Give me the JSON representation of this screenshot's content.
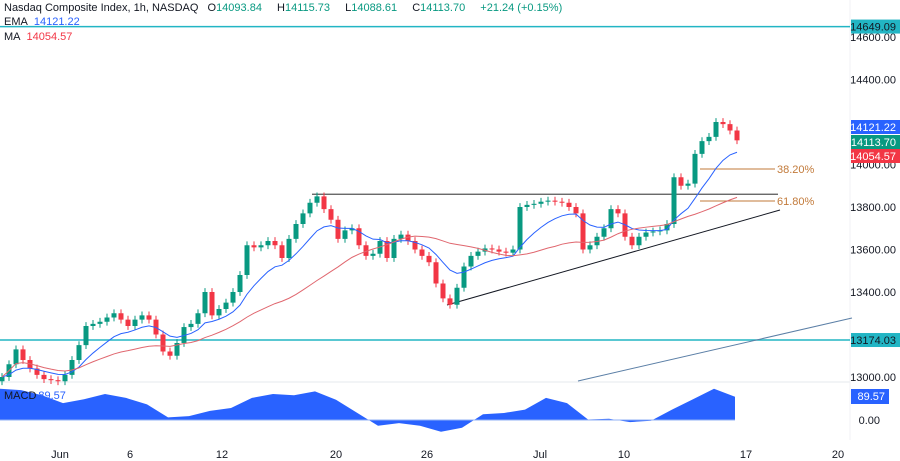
{
  "header": {
    "symbol": "Nasdaq Composite Index, 1h, NASDAQ",
    "open_label": "O",
    "open": "14093.84",
    "high_label": "H",
    "high": "14115.73",
    "low_label": "L",
    "low": "14088.61",
    "close_label": "C",
    "close": "14113.70",
    "change": "+21.24 (+0.15%)",
    "ema_label": "EMA",
    "ema_value": "14121.22",
    "ma_label": "MA",
    "ma_value": "14054.57",
    "macd_label": "MACD",
    "macd_value": "89.57"
  },
  "colors": {
    "up": "#089981",
    "down": "#f23645",
    "ema": "#2962ff",
    "ma": "#e0676f",
    "level": "#22b5c4",
    "fib": "#c27a3a",
    "trend": "#131722",
    "macd": "#2962ff"
  },
  "chart_data": {
    "type": "candlestick",
    "title": "Nasdaq Composite Index, 1h, NASDAQ",
    "ylim": [
      12950,
      14700
    ],
    "y_ticks": [
      "14600.00",
      "14400.00",
      "14000.00",
      "13800.00",
      "13600.00",
      "13400.00",
      "13000.00"
    ],
    "x_ticks": [
      "Jun",
      "6",
      "12",
      "20",
      "26",
      "Jul",
      "10",
      "17",
      "20"
    ],
    "close": [
      13000,
      13060,
      13130,
      13080,
      13040,
      13010,
      12990,
      12985,
      12980,
      13010,
      13080,
      13150,
      13240,
      13250,
      13260,
      13280,
      13300,
      13270,
      13240,
      13270,
      13290,
      13270,
      13200,
      13120,
      13100,
      13160,
      13235,
      13250,
      13300,
      13400,
      13290,
      13320,
      13350,
      13400,
      13480,
      13620,
      13610,
      13620,
      13640,
      13620,
      13560,
      13650,
      13720,
      13770,
      13820,
      13850,
      13790,
      13740,
      13650,
      13690,
      13700,
      13620,
      13570,
      13580,
      13640,
      13560,
      13650,
      13670,
      13640,
      13600,
      13570,
      13540,
      13440,
      13370,
      13340,
      13420,
      13520,
      13570,
      13590,
      13605,
      13600,
      13590,
      13585,
      13600,
      13800,
      13810,
      13815,
      13825,
      13830,
      13825,
      13820,
      13800,
      13770,
      13600,
      13620,
      13660,
      13700,
      13790,
      13770,
      13660,
      13620,
      13660,
      13680,
      13685,
      13690,
      13720,
      13940,
      13900,
      13910,
      14050,
      14110,
      14130,
      14200,
      14190,
      14160,
      14113.7
    ],
    "price_labels": {
      "ema": "14121.22",
      "last": "14113.70",
      "ma": "14054.57"
    },
    "levels": [
      {
        "value": 14649.09,
        "label": "14649.09"
      },
      {
        "value": 13174.03,
        "label": "13174.03"
      }
    ],
    "resistance": 13860,
    "fib_levels": [
      {
        "label": "38.20%",
        "value": 14010
      },
      {
        "label": "61.80%",
        "value": 13860
      }
    ],
    "macd": {
      "label": "MACD",
      "value": "89.57",
      "zero_label": "0.00",
      "values": [
        120,
        115,
        95,
        65,
        80,
        100,
        85,
        60,
        10,
        15,
        35,
        46,
        85,
        100,
        95,
        110,
        78,
        28,
        -22,
        -12,
        -22,
        -45,
        -30,
        22,
        27,
        40,
        85,
        65,
        2,
        5,
        -8,
        -3,
        40,
        80,
        120,
        89.57
      ]
    }
  }
}
